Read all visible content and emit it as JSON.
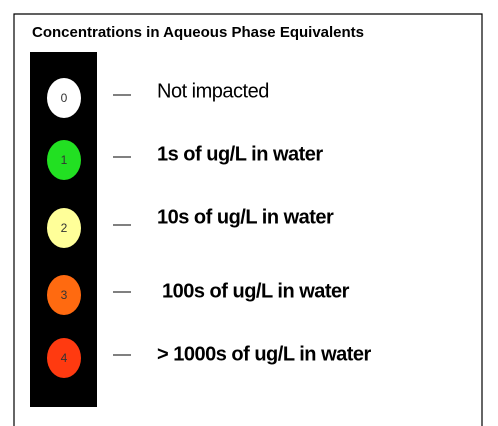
{
  "title": "Concentrations in Aqueous Phase Equivalents",
  "items": [
    {
      "code": "0",
      "label": "Not impacted",
      "color": "#ffffff",
      "bold": false
    },
    {
      "code": "1",
      "label": "1s of ug/L in water",
      "color": "#22e022",
      "bold": true
    },
    {
      "code": "2",
      "label": "10s of ug/L in water",
      "color": "#ffff99",
      "bold": true
    },
    {
      "code": "3",
      "label": "100s of ug/L in water",
      "color": "#ff6a10",
      "bold": true
    },
    {
      "code": "4",
      "label": "> 1000s of ug/L in water",
      "color": "#ff3a10",
      "bold": true
    }
  ]
}
